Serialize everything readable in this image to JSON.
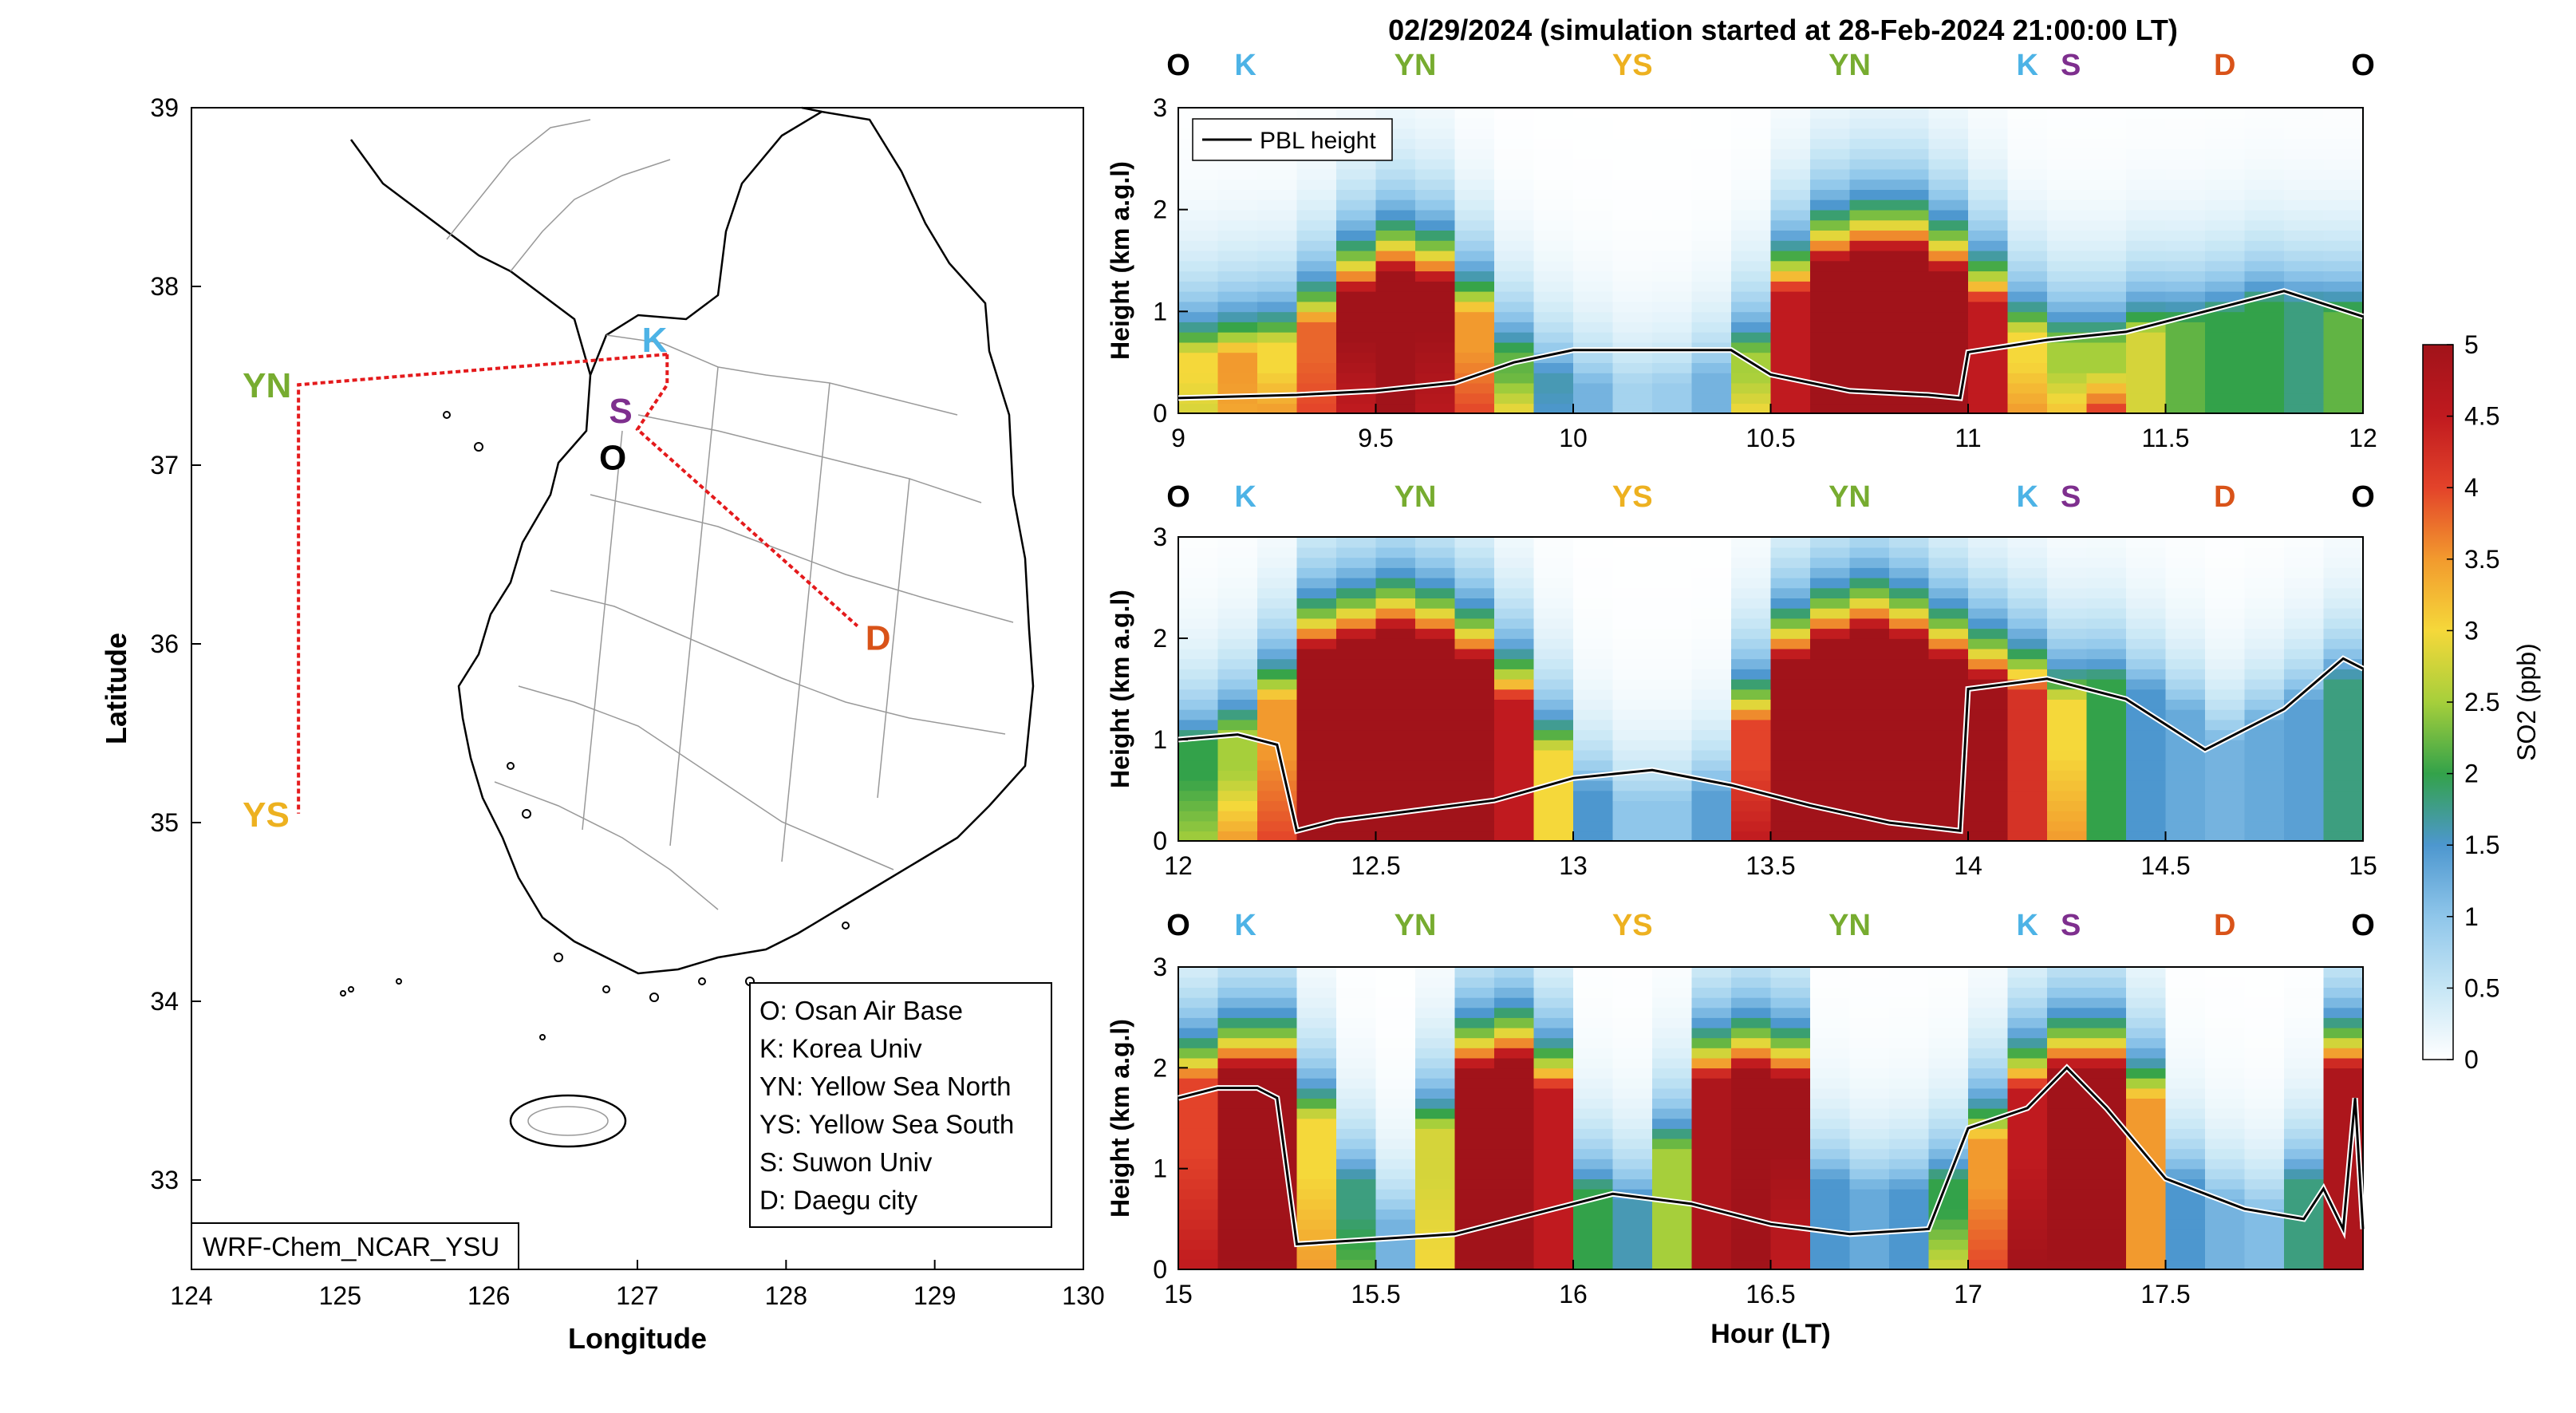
{
  "figure_title": "02/29/2024 (simulation started at 28-Feb-2024 21:00:00 LT)",
  "colors": {
    "O": "#000000",
    "K": "#4db3e6",
    "YN": "#77ac30",
    "YS": "#edb120",
    "S": "#7e2f8e",
    "D": "#d95319",
    "route": "#e41a1c",
    "pbl": "#000000"
  },
  "chart_data": [
    {
      "type": "map",
      "xlabel": "Longitude",
      "ylabel": "Latitude",
      "xlim": [
        124,
        130
      ],
      "ylim": [
        32.5,
        39
      ],
      "xticks": [
        124,
        125,
        126,
        127,
        128,
        129,
        130
      ],
      "yticks": [
        33,
        34,
        35,
        36,
        37,
        38,
        39
      ],
      "model_label": "WRF-Chem_NCAR_YSU",
      "sites": [
        {
          "code": "O",
          "lon": 126.85,
          "lat": 37.1
        },
        {
          "code": "K",
          "lon": 127.03,
          "lat": 37.59
        },
        {
          "code": "S",
          "lon": 126.97,
          "lat": 37.3
        },
        {
          "code": "YN",
          "lon": 124.72,
          "lat": 37.45
        },
        {
          "code": "YS",
          "lon": 124.72,
          "lat": 35.05
        },
        {
          "code": "D",
          "lon": 128.48,
          "lat": 36.1
        }
      ],
      "flight_route": [
        [
          127.2,
          37.62
        ],
        [
          124.72,
          37.45
        ],
        [
          124.72,
          35.05
        ]
      ],
      "flight_route_2": [
        [
          127.2,
          37.62
        ],
        [
          127.2,
          37.45
        ],
        [
          127.0,
          37.2
        ],
        [
          128.48,
          36.1
        ]
      ],
      "legend": [
        "O: Osan Air Base",
        "K: Korea Univ",
        "YN: Yellow Sea North",
        "YS: Yellow Sea South",
        "S: Suwon Univ",
        "D: Daegu city"
      ]
    },
    {
      "type": "heatmap",
      "xlim": [
        9,
        12
      ],
      "ylim": [
        0,
        3
      ],
      "xticks": [
        9,
        9.5,
        10,
        10.5,
        11,
        11.5,
        12
      ],
      "yticks": [
        0,
        1,
        2,
        3
      ],
      "ylabel": "Height (km a.g.l)",
      "site_labels": [
        {
          "code": "O",
          "x": 9.0
        },
        {
          "code": "K",
          "x": 9.17
        },
        {
          "code": "YN",
          "x": 9.6
        },
        {
          "code": "YS",
          "x": 10.15
        },
        {
          "code": "YN",
          "x": 10.7
        },
        {
          "code": "K",
          "x": 11.15
        },
        {
          "code": "S",
          "x": 11.26
        },
        {
          "code": "D",
          "x": 11.65
        },
        {
          "code": "O",
          "x": 12.0
        }
      ],
      "legend_series": "PBL height",
      "pbl": [
        [
          9.0,
          0.15
        ],
        [
          9.3,
          0.18
        ],
        [
          9.5,
          0.22
        ],
        [
          9.7,
          0.3
        ],
        [
          9.85,
          0.5
        ],
        [
          10.0,
          0.62
        ],
        [
          10.2,
          0.62
        ],
        [
          10.4,
          0.62
        ],
        [
          10.5,
          0.38
        ],
        [
          10.7,
          0.22
        ],
        [
          10.9,
          0.18
        ],
        [
          10.98,
          0.15
        ],
        [
          11.0,
          0.6
        ],
        [
          11.2,
          0.72
        ],
        [
          11.4,
          0.8
        ],
        [
          11.6,
          1.0
        ],
        [
          11.8,
          1.2
        ],
        [
          12.0,
          0.95
        ]
      ],
      "so2_columns": [
        [
          9.0,
          0.6,
          3.0,
          2.8
        ],
        [
          9.1,
          0.6,
          3.5,
          3.4
        ],
        [
          9.2,
          0.7,
          3.0,
          3.5
        ],
        [
          9.3,
          0.9,
          3.8,
          4.0
        ],
        [
          9.4,
          1.2,
          5.0,
          4.5
        ],
        [
          9.5,
          1.4,
          5.0,
          5.0
        ],
        [
          9.6,
          1.3,
          5.0,
          4.6
        ],
        [
          9.7,
          1.0,
          3.5,
          4.0
        ],
        [
          9.8,
          0.6,
          2.2,
          3.0
        ],
        [
          9.9,
          0.4,
          1.6,
          1.5
        ],
        [
          10.0,
          0.3,
          1.2,
          1.2
        ],
        [
          10.1,
          0.3,
          0.8,
          0.8
        ],
        [
          10.2,
          0.3,
          0.9,
          0.9
        ],
        [
          10.3,
          0.4,
          1.2,
          1.2
        ],
        [
          10.4,
          0.6,
          2.5,
          3.0
        ],
        [
          10.5,
          1.2,
          4.5,
          4.5
        ],
        [
          10.6,
          1.5,
          5.0,
          5.0
        ],
        [
          10.7,
          1.6,
          5.0,
          5.0
        ],
        [
          10.8,
          1.6,
          5.0,
          5.0
        ],
        [
          10.9,
          1.4,
          5.0,
          5.0
        ],
        [
          11.0,
          1.1,
          4.5,
          4.5
        ],
        [
          11.1,
          0.8,
          3.0,
          3.5
        ],
        [
          11.2,
          0.7,
          2.5,
          3.2
        ],
        [
          11.3,
          0.7,
          2.5,
          4.2
        ],
        [
          11.4,
          0.8,
          2.8,
          2.8
        ],
        [
          11.5,
          0.9,
          2.2,
          2.2
        ],
        [
          11.6,
          1.0,
          2.0,
          2.0
        ],
        [
          11.7,
          1.1,
          2.0,
          2.0
        ],
        [
          11.8,
          1.1,
          1.8,
          1.8
        ],
        [
          11.9,
          1.0,
          2.2,
          2.2
        ]
      ]
    },
    {
      "type": "heatmap",
      "xlim": [
        12,
        15
      ],
      "ylim": [
        0,
        3
      ],
      "xticks": [
        12,
        12.5,
        13,
        13.5,
        14,
        14.5,
        15
      ],
      "yticks": [
        0,
        1,
        2,
        3
      ],
      "ylabel": "Height (km a.g.l)",
      "site_labels": [
        {
          "code": "O",
          "x": 12.0
        },
        {
          "code": "K",
          "x": 12.17
        },
        {
          "code": "YN",
          "x": 12.6
        },
        {
          "code": "YS",
          "x": 13.15
        },
        {
          "code": "YN",
          "x": 13.7
        },
        {
          "code": "K",
          "x": 14.15
        },
        {
          "code": "S",
          "x": 14.26
        },
        {
          "code": "D",
          "x": 14.65
        },
        {
          "code": "O",
          "x": 15.0
        }
      ],
      "pbl": [
        [
          12.0,
          1.0
        ],
        [
          12.15,
          1.05
        ],
        [
          12.25,
          0.95
        ],
        [
          12.3,
          0.1
        ],
        [
          12.4,
          0.2
        ],
        [
          12.6,
          0.3
        ],
        [
          12.8,
          0.4
        ],
        [
          13.0,
          0.62
        ],
        [
          13.2,
          0.7
        ],
        [
          13.4,
          0.55
        ],
        [
          13.6,
          0.35
        ],
        [
          13.8,
          0.18
        ],
        [
          13.98,
          0.1
        ],
        [
          14.0,
          1.5
        ],
        [
          14.2,
          1.6
        ],
        [
          14.4,
          1.4
        ],
        [
          14.6,
          0.9
        ],
        [
          14.8,
          1.3
        ],
        [
          14.95,
          1.8
        ],
        [
          15.0,
          1.7
        ]
      ],
      "so2_columns": [
        [
          12.0,
          1.0,
          2.0,
          2.5
        ],
        [
          12.1,
          1.1,
          2.5,
          3.5
        ],
        [
          12.2,
          1.4,
          3.5,
          4.0
        ],
        [
          12.3,
          1.9,
          5.0,
          5.0
        ],
        [
          12.4,
          2.0,
          5.0,
          5.0
        ],
        [
          12.5,
          2.1,
          5.0,
          5.0
        ],
        [
          12.6,
          2.0,
          5.0,
          5.0
        ],
        [
          12.7,
          1.8,
          5.0,
          5.0
        ],
        [
          12.8,
          1.4,
          4.5,
          4.5
        ],
        [
          12.9,
          0.9,
          3.0,
          3.0
        ],
        [
          13.0,
          0.5,
          1.5,
          1.5
        ],
        [
          13.1,
          0.4,
          1.0,
          1.0
        ],
        [
          13.2,
          0.4,
          1.0,
          1.0
        ],
        [
          13.3,
          0.5,
          1.4,
          1.4
        ],
        [
          13.4,
          1.2,
          4.0,
          4.5
        ],
        [
          13.5,
          1.8,
          5.0,
          5.0
        ],
        [
          13.6,
          2.0,
          5.0,
          5.0
        ],
        [
          13.7,
          2.1,
          5.0,
          5.0
        ],
        [
          13.8,
          2.0,
          5.0,
          5.0
        ],
        [
          13.9,
          1.8,
          5.0,
          5.0
        ],
        [
          14.0,
          1.6,
          5.0,
          5.0
        ],
        [
          14.1,
          1.5,
          4.2,
          4.2
        ],
        [
          14.2,
          1.4,
          3.0,
          3.5
        ],
        [
          14.3,
          1.6,
          2.0,
          2.0
        ],
        [
          14.4,
          1.5,
          1.5,
          1.5
        ],
        [
          14.5,
          1.3,
          1.3,
          1.3
        ],
        [
          14.6,
          1.0,
          1.2,
          1.2
        ],
        [
          14.7,
          1.2,
          1.3,
          1.3
        ],
        [
          14.8,
          1.4,
          1.4,
          1.4
        ],
        [
          14.9,
          1.6,
          1.8,
          1.8
        ]
      ]
    },
    {
      "type": "heatmap",
      "xlim": [
        15,
        18
      ],
      "ylim": [
        0,
        3
      ],
      "xticks": [
        15,
        15.5,
        16,
        16.5,
        17,
        17.5
      ],
      "yticks": [
        0,
        1,
        2,
        3
      ],
      "ylabel": "Height (km a.g.l)",
      "xlabel": "Hour (LT)",
      "site_labels": [
        {
          "code": "O",
          "x": 15.0
        },
        {
          "code": "K",
          "x": 15.17
        },
        {
          "code": "YN",
          "x": 15.6
        },
        {
          "code": "YS",
          "x": 16.15
        },
        {
          "code": "YN",
          "x": 16.7
        },
        {
          "code": "K",
          "x": 17.15
        },
        {
          "code": "S",
          "x": 17.26
        },
        {
          "code": "D",
          "x": 17.65
        },
        {
          "code": "O",
          "x": 18.0
        }
      ],
      "pbl": [
        [
          15.0,
          1.7
        ],
        [
          15.1,
          1.8
        ],
        [
          15.2,
          1.8
        ],
        [
          15.25,
          1.7
        ],
        [
          15.3,
          0.25
        ],
        [
          15.5,
          0.3
        ],
        [
          15.7,
          0.35
        ],
        [
          15.9,
          0.55
        ],
        [
          16.1,
          0.75
        ],
        [
          16.3,
          0.65
        ],
        [
          16.5,
          0.45
        ],
        [
          16.7,
          0.35
        ],
        [
          16.9,
          0.4
        ],
        [
          17.0,
          1.4
        ],
        [
          17.15,
          1.6
        ],
        [
          17.25,
          2.0
        ],
        [
          17.35,
          1.6
        ],
        [
          17.5,
          0.9
        ],
        [
          17.7,
          0.6
        ],
        [
          17.85,
          0.5
        ],
        [
          17.9,
          0.8
        ],
        [
          17.95,
          0.4
        ],
        [
          17.98,
          1.7
        ],
        [
          18.0,
          0.4
        ]
      ],
      "so2_columns": [
        [
          15.0,
          1.9,
          4.0,
          4.5
        ],
        [
          15.1,
          2.0,
          5.0,
          5.0
        ],
        [
          15.2,
          2.0,
          5.0,
          5.0
        ],
        [
          15.3,
          1.5,
          3.0,
          3.5
        ],
        [
          15.4,
          0.9,
          1.8,
          2.2
        ],
        [
          15.5,
          0.5,
          1.2,
          1.2
        ],
        [
          15.6,
          1.4,
          2.8,
          3.0
        ],
        [
          15.7,
          2.0,
          5.0,
          5.0
        ],
        [
          15.8,
          2.1,
          5.0,
          5.0
        ],
        [
          15.9,
          1.8,
          4.5,
          4.5
        ],
        [
          16.0,
          0.8,
          2.0,
          2.0
        ],
        [
          16.1,
          0.7,
          1.6,
          1.6
        ],
        [
          16.2,
          1.2,
          2.5,
          2.5
        ],
        [
          16.3,
          1.9,
          4.8,
          4.8
        ],
        [
          16.4,
          2.0,
          5.0,
          5.0
        ],
        [
          16.5,
          1.9,
          5.0,
          4.5
        ],
        [
          16.6,
          0.9,
          1.5,
          1.5
        ],
        [
          16.7,
          0.8,
          1.3,
          1.3
        ],
        [
          16.8,
          0.8,
          1.5,
          1.5
        ],
        [
          16.9,
          0.9,
          2.0,
          2.8
        ],
        [
          17.0,
          1.3,
          3.5,
          4.0
        ],
        [
          17.1,
          1.8,
          4.5,
          5.0
        ],
        [
          17.2,
          2.0,
          5.0,
          5.0
        ],
        [
          17.3,
          2.0,
          5.0,
          5.0
        ],
        [
          17.4,
          1.7,
          3.5,
          3.5
        ],
        [
          17.5,
          0.9,
          1.5,
          1.5
        ],
        [
          17.6,
          0.7,
          1.2,
          1.2
        ],
        [
          17.7,
          0.6,
          1.1,
          1.1
        ],
        [
          17.8,
          0.9,
          1.8,
          1.8
        ],
        [
          17.9,
          2.0,
          4.8,
          4.8
        ]
      ]
    }
  ],
  "colorbar": {
    "label": "SO2 (ppb)",
    "min": 0,
    "max": 5,
    "ticks": [
      "0",
      "0.5",
      "1",
      "1.5",
      "2",
      "2.5",
      "3",
      "3.5",
      "4",
      "4.5",
      "5"
    ]
  }
}
